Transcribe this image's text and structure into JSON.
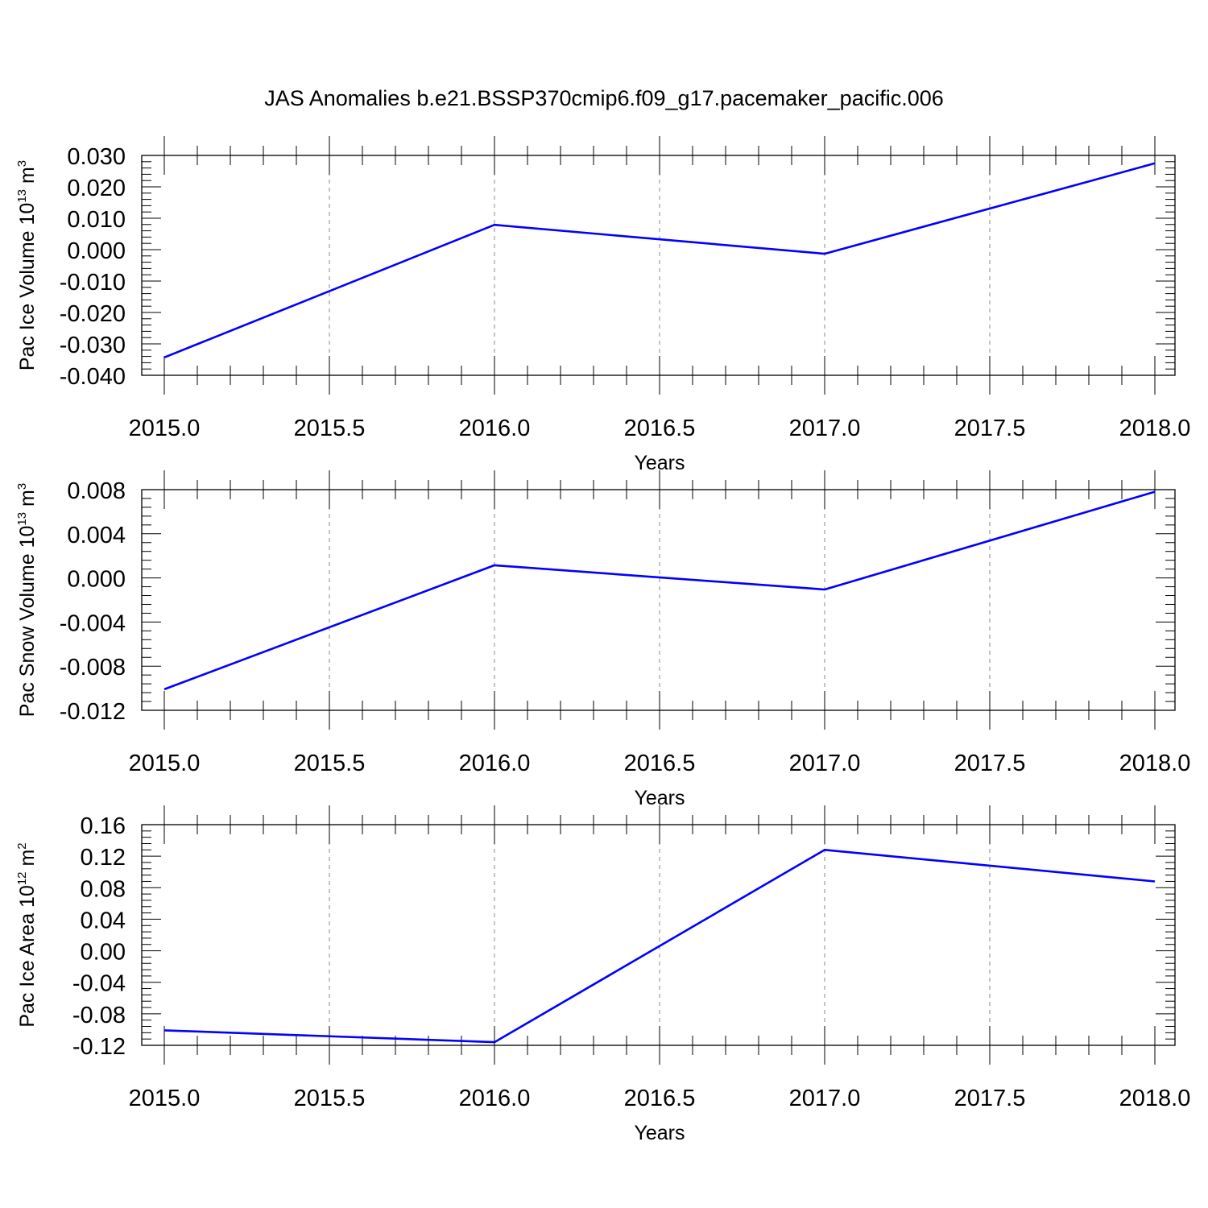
{
  "title": "JAS Anomalies b.e21.BSSP370cmip6.f09_g17.pacemaker_pacific.006",
  "colors": {
    "series": "#0000ff",
    "grid": "#888888"
  },
  "chart_data": [
    {
      "type": "line",
      "xlabel": "Years",
      "ylabel": {
        "prefix": "Pac Ice Volume 10",
        "exponent": "13",
        "unit": " m",
        "unit_exponent": "3"
      },
      "xlim": [
        2015.0,
        2018.0
      ],
      "ylim": [
        -0.04,
        0.03
      ],
      "x_ticks": [
        "2015.0",
        "2015.5",
        "2016.0",
        "2016.5",
        "2017.0",
        "2017.5",
        "2018.0"
      ],
      "y_ticks": [
        "0.030",
        "0.020",
        "0.010",
        "0.000",
        "-0.010",
        "-0.020",
        "-0.030",
        "-0.040"
      ],
      "grid": true,
      "series": [
        {
          "x": [
            2015,
            2016,
            2017,
            2018
          ],
          "values": [
            -0.0343,
            0.0079,
            -0.0013,
            0.0275
          ]
        }
      ]
    },
    {
      "type": "line",
      "xlabel": "Years",
      "ylabel": {
        "prefix": "Pac Snow Volume 10",
        "exponent": "13",
        "unit": " m",
        "unit_exponent": "3"
      },
      "xlim": [
        2015.0,
        2018.0
      ],
      "ylim": [
        -0.012,
        0.009
      ],
      "x_ticks": [
        "2015.0",
        "2015.5",
        "2016.0",
        "2016.5",
        "2017.0",
        "2017.5",
        "2018.0"
      ],
      "y_ticks": [
        "0.008",
        "0.004",
        "0.000",
        "-0.004",
        "-0.008",
        "-0.012"
      ],
      "grid": true,
      "series": [
        {
          "x": [
            2015,
            2016,
            2017,
            2018
          ],
          "values": [
            -0.01,
            0.0018,
            -0.0005,
            0.0088
          ]
        }
      ]
    },
    {
      "type": "line",
      "xlabel": "Years",
      "ylabel": {
        "prefix": "Pac Ice Area 10",
        "exponent": "12",
        "unit": " m",
        "unit_exponent": "2"
      },
      "xlim": [
        2015.0,
        2018.0
      ],
      "ylim": [
        -0.12,
        0.16
      ],
      "x_ticks": [
        "2015.0",
        "2015.5",
        "2016.0",
        "2016.5",
        "2017.0",
        "2017.5",
        "2018.0"
      ],
      "y_ticks": [
        "0.16",
        "0.12",
        "0.08",
        "0.04",
        "0.00",
        "-0.04",
        "-0.08",
        "-0.12"
      ],
      "grid": true,
      "series": [
        {
          "x": [
            2015,
            2016,
            2017,
            2018
          ],
          "values": [
            -0.101,
            -0.116,
            0.128,
            0.088
          ]
        }
      ]
    }
  ]
}
